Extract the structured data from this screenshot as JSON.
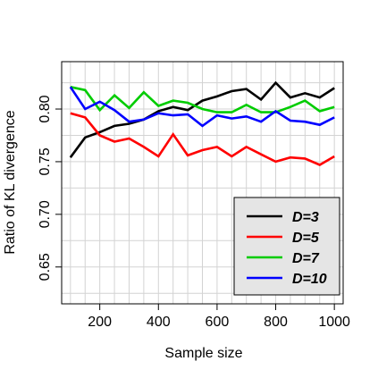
{
  "chart_data": {
    "type": "line",
    "xlabel": "Sample size",
    "ylabel": "Ratio of KL divergence",
    "xlim": [
      70,
      1030
    ],
    "ylim": [
      0.615,
      0.845
    ],
    "x_ticks": [
      200,
      400,
      600,
      800,
      1000
    ],
    "x_tick_labels": [
      "200",
      "400",
      "600",
      "800",
      "1000"
    ],
    "y_ticks": [
      0.65,
      0.7,
      0.75,
      0.8
    ],
    "y_tick_labels": [
      "0.65",
      "0.70",
      "0.75",
      "0.80"
    ],
    "grid": true,
    "legend_position": "bottom-right",
    "x": [
      100,
      150,
      200,
      250,
      300,
      350,
      400,
      450,
      500,
      550,
      600,
      650,
      700,
      750,
      800,
      850,
      900,
      950,
      1000
    ],
    "series": [
      {
        "name": "D=3",
        "color": "#000000",
        "values": [
          0.754,
          0.773,
          0.778,
          0.784,
          0.786,
          0.79,
          0.798,
          0.802,
          0.799,
          0.808,
          0.812,
          0.817,
          0.819,
          0.809,
          0.825,
          0.811,
          0.815,
          0.811,
          0.82
        ]
      },
      {
        "name": "D=5",
        "color": "#ff0000",
        "values": [
          0.796,
          0.792,
          0.775,
          0.769,
          0.772,
          0.764,
          0.755,
          0.776,
          0.756,
          0.761,
          0.764,
          0.755,
          0.764,
          0.757,
          0.75,
          0.754,
          0.753,
          0.747,
          0.755
        ]
      },
      {
        "name": "D=7",
        "color": "#00cc00",
        "values": [
          0.821,
          0.818,
          0.799,
          0.813,
          0.801,
          0.816,
          0.803,
          0.808,
          0.806,
          0.8,
          0.797,
          0.797,
          0.804,
          0.797,
          0.797,
          0.802,
          0.808,
          0.798,
          0.802
        ]
      },
      {
        "name": "D=10",
        "color": "#0000ff",
        "values": [
          0.821,
          0.8,
          0.807,
          0.799,
          0.788,
          0.79,
          0.796,
          0.794,
          0.795,
          0.784,
          0.794,
          0.791,
          0.793,
          0.788,
          0.798,
          0.789,
          0.788,
          0.785,
          0.792
        ]
      }
    ]
  }
}
